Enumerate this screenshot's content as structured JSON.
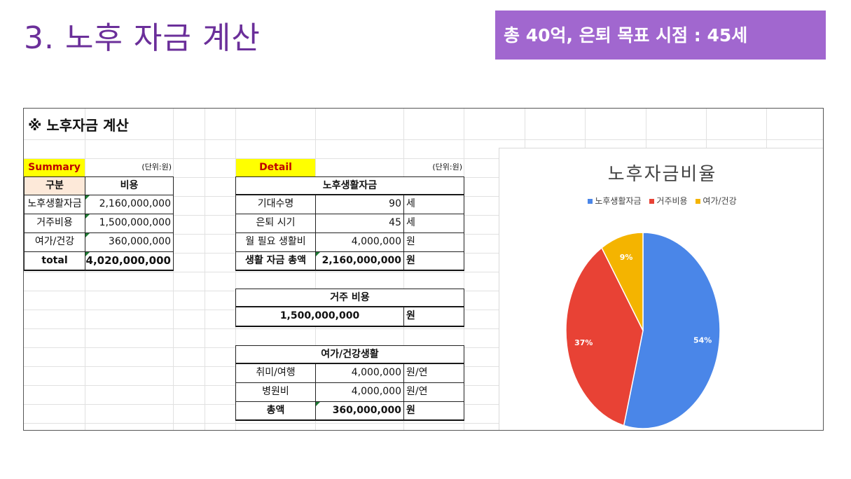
{
  "slide": {
    "title": "3. 노후 자금 계산",
    "goal_badge": "총 40억, 은퇴 목표 시점 : 45세"
  },
  "sheet": {
    "title": "※ 노후자금 계산",
    "summary": {
      "label": "Summary",
      "unit": "(단위:원)",
      "col_header_1": "구분",
      "col_header_2": "비용",
      "rows": [
        {
          "name": "노후생활자금",
          "value": "2,160,000,000"
        },
        {
          "name": "거주비용",
          "value": "1,500,000,000"
        },
        {
          "name": "여가/건강",
          "value": "360,000,000"
        },
        {
          "name": "total",
          "value": "4,020,000,000"
        }
      ]
    },
    "detail": {
      "label": "Detail",
      "unit": "(단위:원)",
      "living": {
        "header": "노후생활자금",
        "rows": [
          {
            "name": "기대수명",
            "value": "90",
            "unit": "세"
          },
          {
            "name": "은퇴 시기",
            "value": "45",
            "unit": "세"
          },
          {
            "name": "월 필요 생활비",
            "value": "4,000,000",
            "unit": "원"
          },
          {
            "name": "생활 자금 총액",
            "value": "2,160,000,000",
            "unit": "원"
          }
        ]
      },
      "housing": {
        "header": "거주 비용",
        "value": "1,500,000,000",
        "unit": "원"
      },
      "leisure": {
        "header": "여가/건강생활",
        "rows": [
          {
            "name": "취미/여행",
            "value": "4,000,000",
            "unit": "원/연"
          },
          {
            "name": "병원비",
            "value": "4,000,000",
            "unit": "원/연"
          },
          {
            "name": "총액",
            "value": "360,000,000",
            "unit": "원"
          }
        ]
      }
    }
  },
  "chart_data": {
    "type": "pie",
    "title": "노후자금비율",
    "categories": [
      "노후생활자금",
      "거주비용",
      "여가/건강"
    ],
    "values": [
      54,
      37,
      9
    ],
    "labels": [
      "54%",
      "37%",
      "9%"
    ],
    "colors": [
      "#4a86e8",
      "#e84235",
      "#f4b400"
    ],
    "legend": "top"
  }
}
